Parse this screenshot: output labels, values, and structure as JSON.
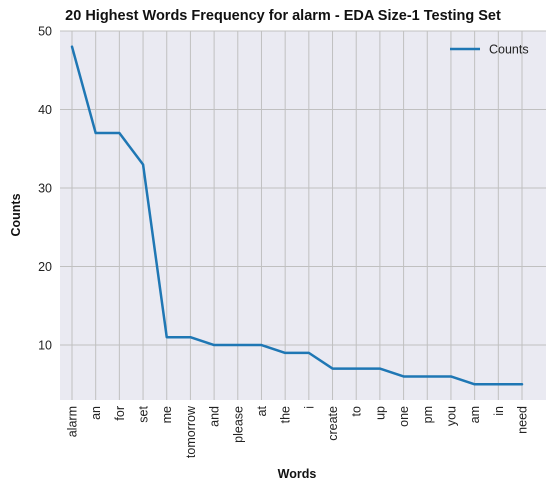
{
  "chart_data": {
    "type": "line",
    "title": "20 Highest Words Frequency for alarm - EDA Size-1 Testing Set",
    "xlabel": "Words",
    "ylabel": "Counts",
    "categories": [
      "alarm",
      "an",
      "for",
      "set",
      "me",
      "tomorrow",
      "and",
      "please",
      "at",
      "the",
      "i",
      "create",
      "to",
      "up",
      "one",
      "pm",
      "you",
      "am",
      "in",
      "need"
    ],
    "series": [
      {
        "name": "Counts",
        "values": [
          48,
          37,
          37,
          33,
          11,
          11,
          10,
          10,
          10,
          9,
          9,
          7,
          7,
          7,
          6,
          6,
          6,
          5,
          5,
          5
        ],
        "color": "#1f77b4"
      }
    ],
    "ylim": [
      3,
      50
    ],
    "yticks": [
      10,
      20,
      30,
      40,
      50
    ],
    "grid": true,
    "legend_position": "top-right",
    "background_color": "#eaeaf2",
    "grid_color": "#c0c0c0"
  }
}
